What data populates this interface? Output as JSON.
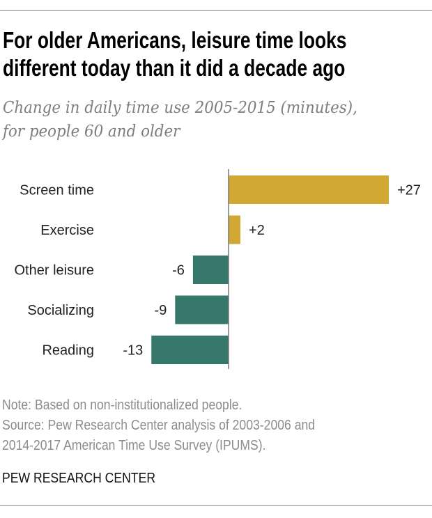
{
  "header": {
    "title_lines": [
      "For older Americans, leisure time looks",
      "different today than it did a decade ago"
    ],
    "subtitle_lines": [
      "Change in daily time use 2005-2015 (minutes),",
      "for people 60 and older"
    ]
  },
  "chart_data": {
    "type": "bar",
    "orientation": "horizontal",
    "title": "For older Americans, leisure time looks different today than it did a decade ago",
    "subtitle": "Change in daily time use 2005-2015 (minutes), for people 60 and older",
    "categories": [
      "Screen time",
      "Exercise",
      "Other leisure",
      "Socializing",
      "Reading"
    ],
    "values": [
      27,
      2,
      -6,
      -9,
      -13
    ],
    "data_labels": [
      "+27",
      "+2",
      "-6",
      "-9",
      "-13"
    ],
    "colors": {
      "positive": "#D1A833",
      "negative": "#35776A",
      "axis": "#777777"
    },
    "xlim": [
      -13,
      27
    ],
    "grid": false,
    "legend": "none"
  },
  "footer": {
    "note": "Note: Based on non-institutionalized people.",
    "source_lines": [
      "Source: Pew Research Center analysis of 2003-2006 and",
      "2014-2017 American Time Use Survey (IPUMS)."
    ],
    "brand": "PEW RESEARCH CENTER"
  }
}
